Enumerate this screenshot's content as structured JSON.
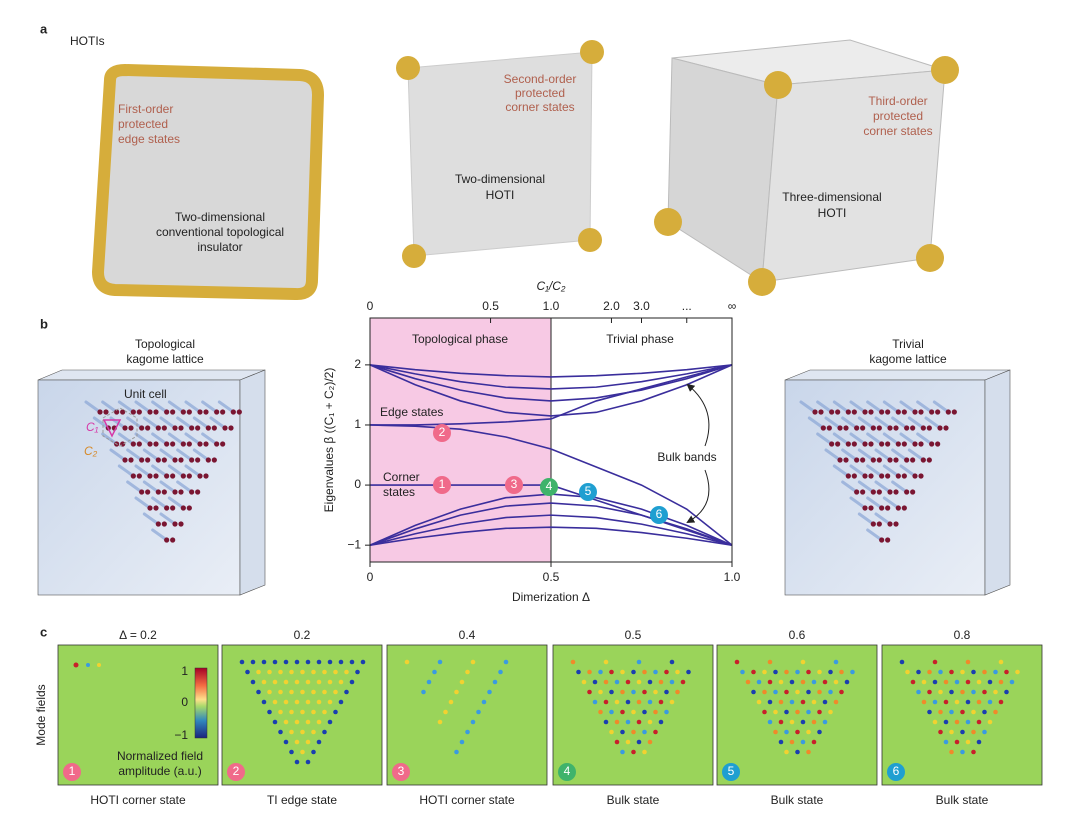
{
  "panel_a": {
    "label": "a",
    "heading": "HOTIs",
    "first": {
      "note": [
        "First-order",
        "protected",
        "edge states"
      ],
      "caption": [
        "Two-dimensional",
        "conventional topological",
        "insulator"
      ]
    },
    "second": {
      "note": [
        "Second-order",
        "protected",
        "corner states"
      ],
      "caption": [
        "Two-dimensional",
        "HOTI"
      ]
    },
    "third": {
      "note": [
        "Third-order",
        "protected",
        "corner states"
      ],
      "caption": [
        "Three-dimensional",
        "HOTI"
      ]
    }
  },
  "panel_b": {
    "label": "b",
    "left_title": [
      "Topological",
      "kagome lattice"
    ],
    "right_title": [
      "Trivial",
      "kagome lattice"
    ],
    "unit_cell": "Unit cell",
    "c1": "C₁",
    "c2": "C₂"
  },
  "state_markers": [
    "1",
    "2",
    "3",
    "4",
    "5",
    "6"
  ],
  "chart_data": {
    "type": "line",
    "x_label": "Dimerization Δ",
    "y_label": "Eigenvalues β ((C₁ + C₂)/2)",
    "top_axis_label": "C₁/C₂",
    "annotations": {
      "topological": "Topological phase",
      "trivial": "Trivial phase",
      "edge": "Edge states",
      "corner": [
        "Corner",
        "states"
      ],
      "bulk": "Bulk bands"
    },
    "xlim": [
      0,
      1
    ],
    "ylim": [
      -1.28,
      2.78
    ],
    "xticks": [
      0,
      0.5,
      {
        "value": 1,
        "label": "1.0"
      }
    ],
    "yticks": [
      2,
      1,
      0,
      {
        "value": -1,
        "label": "−1"
      }
    ],
    "top_xticks": [
      0,
      {
        "value": 0.333,
        "label": "0.5"
      },
      {
        "value": 0.5,
        "label": "1.0"
      },
      {
        "value": 0.667,
        "label": "2.0"
      },
      {
        "value": 0.75,
        "label": "3.0"
      },
      {
        "value": 0.875,
        "label": "..."
      },
      {
        "value": 1,
        "label": "∞"
      }
    ],
    "topological_region": [
      0,
      0.5
    ],
    "color": "#3a2e9c",
    "x": [
      0,
      0.125,
      0.25,
      0.375,
      0.5,
      0.625,
      0.75,
      0.875,
      1
    ],
    "series": [
      {
        "values": [
          2,
          1.92,
          1.86,
          1.82,
          1.8,
          1.82,
          1.86,
          1.92,
          2
        ]
      },
      {
        "values": [
          2,
          1.85,
          1.72,
          1.63,
          1.6,
          1.63,
          1.72,
          1.85,
          2
        ]
      },
      {
        "values": [
          2,
          1.77,
          1.58,
          1.45,
          1.4,
          1.45,
          1.58,
          1.77,
          2
        ]
      },
      {
        "values": [
          2,
          1.67,
          1.4,
          1.21,
          1.15,
          1.21,
          1.4,
          1.67,
          2
        ]
      },
      {
        "values": [
          1,
          0.98,
          0.93,
          0.8,
          0.6,
          0.3,
          0,
          -0.4,
          -1
        ]
      },
      {
        "values": [
          1,
          1,
          1.02,
          1.05,
          1.1,
          1.4,
          1.6,
          1.8,
          2
        ]
      },
      {
        "values": [
          0,
          0,
          0,
          0,
          0,
          -0.25,
          -0.5,
          -0.75,
          -1
        ]
      },
      {
        "values": [
          -1,
          -0.885,
          -0.79,
          -0.72,
          -0.7,
          -0.72,
          -0.79,
          -0.885,
          -1
        ]
      },
      {
        "values": [
          -1,
          -0.81,
          -0.65,
          -0.54,
          -0.5,
          -0.54,
          -0.65,
          -0.81,
          -1
        ]
      },
      {
        "values": [
          -1,
          -0.73,
          -0.5,
          -0.35,
          -0.3,
          -0.35,
          -0.5,
          -0.73,
          -1
        ]
      },
      {
        "values": [
          -1,
          -0.67,
          -0.4,
          -0.21,
          -0.15,
          -0.21,
          -0.4,
          -0.67,
          -1
        ]
      }
    ]
  },
  "panel_c": {
    "label": "c",
    "y_label": "Mode fields",
    "delta_labels": [
      "Δ = 0.2",
      "0.2",
      "0.4",
      "0.5",
      "0.6",
      "0.8"
    ],
    "captions": [
      "HOTI corner state",
      "TI edge state",
      "HOTI corner state",
      "Bulk state",
      "Bulk state",
      "Bulk state"
    ],
    "colorbar_ticks": [
      "1",
      "0",
      "−1"
    ],
    "colorbar_label": [
      "Normalized field",
      "amplitude (a.u.)"
    ]
  }
}
